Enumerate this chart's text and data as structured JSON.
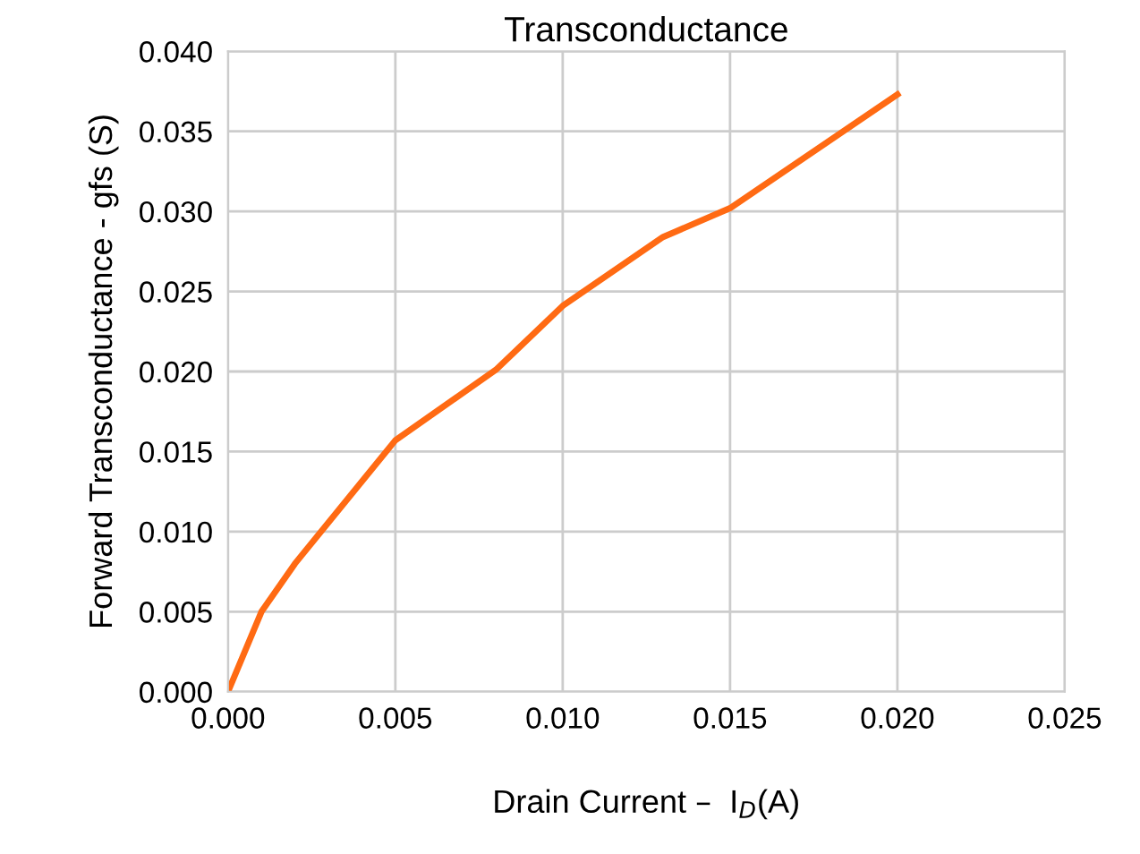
{
  "chart_data": {
    "type": "line",
    "title": "Transconductance",
    "xlabel": "Drain Current –  I$_{D}$(A)",
    "ylabel": "Forward Transconductance - gfs (S)",
    "x": [
      0,
      0.001,
      0.002,
      0.005,
      0.008,
      0.01,
      0.013,
      0.015,
      0.02
    ],
    "series": [
      {
        "color": "#ff6a13",
        "values": [
          0,
          0.005,
          0.008,
          0.0157,
          0.0201,
          0.0241,
          0.0284,
          0.0302,
          0.0373
        ]
      }
    ],
    "xlim": [
      0,
      0.025
    ],
    "xticks": [
      {
        "value": 0,
        "label": "0.000"
      },
      0.005,
      {
        "value": 0.01,
        "label": "0.010"
      },
      0.015,
      {
        "value": 0.02,
        "label": "0.020"
      },
      0.025
    ],
    "ylim": [
      0,
      0.04
    ],
    "yticks": [
      {
        "value": 0,
        "label": "0.000"
      },
      0.005,
      {
        "value": 0.01,
        "label": "0.010"
      },
      0.015,
      {
        "value": 0.02,
        "label": "0.020"
      },
      0.025,
      {
        "value": 0.03,
        "label": "0.030"
      },
      0.035,
      {
        "value": 0.04,
        "label": "0.040"
      }
    ],
    "grid": true,
    "marker": "none",
    "line_style": "solid"
  }
}
